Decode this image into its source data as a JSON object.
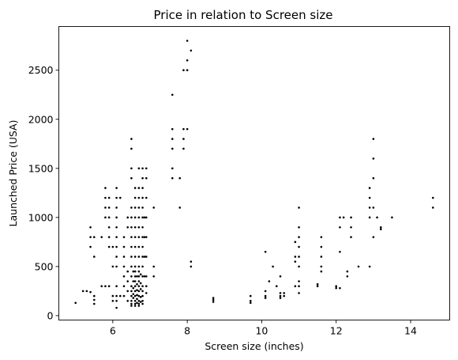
{
  "chart_data": {
    "type": "scatter",
    "title": "Price in relation to Screen size",
    "xlabel": "Screen size (inches)",
    "ylabel": "Launched Price (USA)",
    "xlim": [
      4.55,
      15.05
    ],
    "ylim": [
      -45,
      2945
    ],
    "x_ticks": [
      6,
      8,
      10,
      12,
      14
    ],
    "y_ticks": [
      0,
      500,
      1000,
      1500,
      2000,
      2500
    ],
    "grid": false,
    "legend": "none",
    "marker_color": "#000000",
    "points": [
      [
        5.0,
        130
      ],
      [
        5.2,
        250
      ],
      [
        5.3,
        250
      ],
      [
        5.4,
        900
      ],
      [
        5.4,
        800
      ],
      [
        5.4,
        700
      ],
      [
        5.4,
        240
      ],
      [
        5.5,
        200
      ],
      [
        5.5,
        160
      ],
      [
        5.5,
        120
      ],
      [
        5.5,
        600
      ],
      [
        5.5,
        800
      ],
      [
        5.7,
        800
      ],
      [
        5.7,
        300
      ],
      [
        5.8,
        1300
      ],
      [
        5.8,
        1200
      ],
      [
        5.8,
        1100
      ],
      [
        5.8,
        1000
      ],
      [
        5.8,
        300
      ],
      [
        5.9,
        1200
      ],
      [
        5.9,
        1100
      ],
      [
        5.9,
        1000
      ],
      [
        5.9,
        900
      ],
      [
        5.9,
        800
      ],
      [
        5.9,
        700
      ],
      [
        5.9,
        300
      ],
      [
        6.0,
        700
      ],
      [
        6.0,
        500
      ],
      [
        6.0,
        200
      ],
      [
        6.0,
        150
      ],
      [
        6.1,
        1300
      ],
      [
        6.1,
        1200
      ],
      [
        6.1,
        1100
      ],
      [
        6.1,
        1000
      ],
      [
        6.1,
        900
      ],
      [
        6.1,
        800
      ],
      [
        6.1,
        700
      ],
      [
        6.1,
        600
      ],
      [
        6.1,
        500
      ],
      [
        6.1,
        300
      ],
      [
        6.1,
        200
      ],
      [
        6.1,
        150
      ],
      [
        6.1,
        80
      ],
      [
        6.2,
        1200
      ],
      [
        6.2,
        200
      ],
      [
        6.3,
        800
      ],
      [
        6.3,
        700
      ],
      [
        6.3,
        600
      ],
      [
        6.3,
        500
      ],
      [
        6.3,
        400
      ],
      [
        6.3,
        300
      ],
      [
        6.3,
        200
      ],
      [
        6.4,
        1000
      ],
      [
        6.4,
        900
      ],
      [
        6.4,
        450
      ],
      [
        6.4,
        350
      ],
      [
        6.4,
        250
      ],
      [
        6.4,
        150
      ],
      [
        6.5,
        1800
      ],
      [
        6.5,
        1700
      ],
      [
        6.5,
        1500
      ],
      [
        6.5,
        1400
      ],
      [
        6.5,
        1100
      ],
      [
        6.5,
        1000
      ],
      [
        6.5,
        900
      ],
      [
        6.5,
        800
      ],
      [
        6.5,
        700
      ],
      [
        6.5,
        600
      ],
      [
        6.5,
        500
      ],
      [
        6.5,
        400
      ],
      [
        6.5,
        300
      ],
      [
        6.5,
        250
      ],
      [
        6.5,
        200
      ],
      [
        6.5,
        150
      ],
      [
        6.5,
        120
      ],
      [
        6.5,
        100
      ],
      [
        6.55,
        450
      ],
      [
        6.55,
        350
      ],
      [
        6.55,
        280
      ],
      [
        6.55,
        220
      ],
      [
        6.55,
        180
      ],
      [
        6.6,
        1300
      ],
      [
        6.6,
        1200
      ],
      [
        6.6,
        1100
      ],
      [
        6.6,
        1000
      ],
      [
        6.6,
        900
      ],
      [
        6.6,
        800
      ],
      [
        6.6,
        700
      ],
      [
        6.6,
        600
      ],
      [
        6.6,
        500
      ],
      [
        6.6,
        450
      ],
      [
        6.6,
        400
      ],
      [
        6.6,
        350
      ],
      [
        6.6,
        300
      ],
      [
        6.6,
        250
      ],
      [
        6.6,
        200
      ],
      [
        6.6,
        150
      ],
      [
        6.6,
        120
      ],
      [
        6.6,
        100
      ],
      [
        6.65,
        400
      ],
      [
        6.65,
        320
      ],
      [
        6.65,
        260
      ],
      [
        6.65,
        210
      ],
      [
        6.65,
        170
      ],
      [
        6.65,
        130
      ],
      [
        6.7,
        1500
      ],
      [
        6.7,
        1300
      ],
      [
        6.7,
        1200
      ],
      [
        6.7,
        1100
      ],
      [
        6.7,
        1000
      ],
      [
        6.7,
        900
      ],
      [
        6.7,
        800
      ],
      [
        6.7,
        700
      ],
      [
        6.7,
        600
      ],
      [
        6.7,
        500
      ],
      [
        6.7,
        450
      ],
      [
        6.7,
        400
      ],
      [
        6.7,
        350
      ],
      [
        6.7,
        300
      ],
      [
        6.7,
        250
      ],
      [
        6.7,
        200
      ],
      [
        6.7,
        150
      ],
      [
        6.7,
        120
      ],
      [
        6.7,
        100
      ],
      [
        6.75,
        420
      ],
      [
        6.75,
        330
      ],
      [
        6.75,
        270
      ],
      [
        6.75,
        190
      ],
      [
        6.75,
        140
      ],
      [
        6.8,
        1500
      ],
      [
        6.8,
        1400
      ],
      [
        6.8,
        1300
      ],
      [
        6.8,
        1200
      ],
      [
        6.8,
        1100
      ],
      [
        6.8,
        1000
      ],
      [
        6.8,
        900
      ],
      [
        6.8,
        800
      ],
      [
        6.8,
        700
      ],
      [
        6.8,
        600
      ],
      [
        6.8,
        500
      ],
      [
        6.8,
        400
      ],
      [
        6.8,
        300
      ],
      [
        6.8,
        250
      ],
      [
        6.8,
        200
      ],
      [
        6.8,
        150
      ],
      [
        6.8,
        120
      ],
      [
        6.85,
        1000
      ],
      [
        6.85,
        800
      ],
      [
        6.85,
        600
      ],
      [
        6.85,
        400
      ],
      [
        6.9,
        1500
      ],
      [
        6.9,
        1400
      ],
      [
        6.9,
        1200
      ],
      [
        6.9,
        1000
      ],
      [
        6.9,
        800
      ],
      [
        6.9,
        600
      ],
      [
        6.9,
        400
      ],
      [
        6.9,
        300
      ],
      [
        6.9,
        230
      ],
      [
        7.1,
        1100
      ],
      [
        7.1,
        500
      ],
      [
        7.1,
        400
      ],
      [
        7.6,
        2250
      ],
      [
        7.6,
        1900
      ],
      [
        7.6,
        1800
      ],
      [
        7.6,
        1700
      ],
      [
        7.6,
        1500
      ],
      [
        7.6,
        1400
      ],
      [
        7.8,
        1400
      ],
      [
        7.8,
        1100
      ],
      [
        7.9,
        2500
      ],
      [
        7.9,
        1800
      ],
      [
        7.9,
        1700
      ],
      [
        7.9,
        1900
      ],
      [
        8.0,
        2800
      ],
      [
        8.0,
        2600
      ],
      [
        8.0,
        2500
      ],
      [
        8.0,
        1900
      ],
      [
        8.1,
        2700
      ],
      [
        8.1,
        550
      ],
      [
        8.1,
        500
      ],
      [
        8.7,
        180
      ],
      [
        8.7,
        160
      ],
      [
        8.7,
        140
      ],
      [
        9.7,
        200
      ],
      [
        9.7,
        150
      ],
      [
        9.7,
        130
      ],
      [
        10.1,
        650
      ],
      [
        10.1,
        200
      ],
      [
        10.1,
        180
      ],
      [
        10.1,
        250
      ],
      [
        10.2,
        350
      ],
      [
        10.3,
        500
      ],
      [
        10.4,
        300
      ],
      [
        10.5,
        400
      ],
      [
        10.5,
        230
      ],
      [
        10.5,
        200
      ],
      [
        10.5,
        180
      ],
      [
        10.6,
        230
      ],
      [
        10.6,
        200
      ],
      [
        10.9,
        750
      ],
      [
        10.9,
        600
      ],
      [
        10.9,
        550
      ],
      [
        10.9,
        300
      ],
      [
        11.0,
        1100
      ],
      [
        11.0,
        900
      ],
      [
        11.0,
        800
      ],
      [
        11.0,
        700
      ],
      [
        11.0,
        600
      ],
      [
        11.0,
        500
      ],
      [
        11.0,
        350
      ],
      [
        11.0,
        300
      ],
      [
        11.0,
        230
      ],
      [
        11.5,
        320
      ],
      [
        11.5,
        300
      ],
      [
        11.6,
        800
      ],
      [
        11.6,
        700
      ],
      [
        11.6,
        600
      ],
      [
        11.6,
        500
      ],
      [
        11.6,
        450
      ],
      [
        12.0,
        300
      ],
      [
        12.0,
        280
      ],
      [
        12.1,
        1000
      ],
      [
        12.1,
        900
      ],
      [
        12.1,
        650
      ],
      [
        12.1,
        280
      ],
      [
        12.2,
        1000
      ],
      [
        12.3,
        450
      ],
      [
        12.3,
        400
      ],
      [
        12.4,
        1000
      ],
      [
        12.4,
        900
      ],
      [
        12.4,
        800
      ],
      [
        12.6,
        500
      ],
      [
        12.9,
        1300
      ],
      [
        12.9,
        1200
      ],
      [
        12.9,
        1100
      ],
      [
        12.9,
        1000
      ],
      [
        12.9,
        500
      ],
      [
        13.0,
        1800
      ],
      [
        13.0,
        1600
      ],
      [
        13.0,
        1400
      ],
      [
        13.0,
        1100
      ],
      [
        13.0,
        800
      ],
      [
        13.1,
        1000
      ],
      [
        13.2,
        900
      ],
      [
        13.2,
        880
      ],
      [
        13.5,
        1000
      ],
      [
        14.6,
        1200
      ],
      [
        14.6,
        1100
      ]
    ]
  }
}
